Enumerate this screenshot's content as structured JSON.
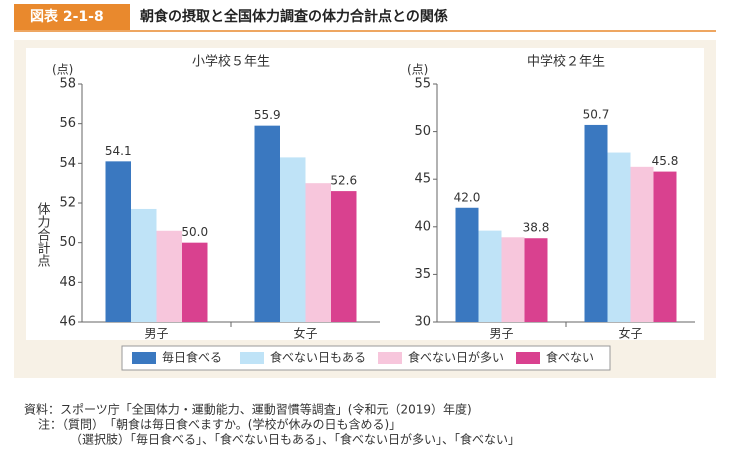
{
  "header": {
    "label": "図表 2-1-8",
    "title": "朝食の摂取と全国体力調査の体力合計点との関係"
  },
  "y_axis_label": "体力合計点",
  "chart_data": [
    {
      "type": "bar",
      "title": "小学校５年生",
      "unit": "(点)",
      "categories": [
        "男子",
        "女子"
      ],
      "series": [
        {
          "name": "毎日食べる",
          "color": "#3a78c0",
          "values": [
            54.1,
            55.9
          ],
          "value_labels": [
            "54.1",
            "55.9"
          ]
        },
        {
          "name": "食べない日もある",
          "color": "#bfe3f7",
          "values": [
            51.7,
            54.3
          ]
        },
        {
          "name": "食べない日が多い",
          "color": "#f7c6dc",
          "values": [
            50.6,
            53.0
          ]
        },
        {
          "name": "食べない",
          "color": "#d9418f",
          "values": [
            50.0,
            52.6
          ],
          "value_labels": [
            "50.0",
            "52.6"
          ]
        }
      ],
      "ylim": [
        46,
        58
      ],
      "yticks": [
        46,
        48,
        50,
        52,
        54,
        56,
        58
      ]
    },
    {
      "type": "bar",
      "title": "中学校２年生",
      "unit": "(点)",
      "categories": [
        "男子",
        "女子"
      ],
      "series": [
        {
          "name": "毎日食べる",
          "color": "#3a78c0",
          "values": [
            42.0,
            50.7
          ],
          "value_labels": [
            "42.0",
            "50.7"
          ]
        },
        {
          "name": "食べない日もある",
          "color": "#bfe3f7",
          "values": [
            39.6,
            47.8
          ]
        },
        {
          "name": "食べない日が多い",
          "color": "#f7c6dc",
          "values": [
            38.9,
            46.3
          ]
        },
        {
          "name": "食べない",
          "color": "#d9418f",
          "values": [
            38.8,
            45.8
          ],
          "value_labels": [
            "38.8",
            "45.8"
          ]
        }
      ],
      "ylim": [
        30,
        55
      ],
      "yticks": [
        30,
        35,
        40,
        45,
        50,
        55
      ]
    }
  ],
  "notes": [
    "資料：スポーツ庁「全国体力・運動能力、運動習慣等調査」(令和元（2019）年度)",
    "注：（質問）　「朝食は毎日食べますか。(学校が休みの日も含める)」",
    "（選択肢）「毎日食べる」、「食べない日もある」、「食べない日が多い」、「食べない」"
  ]
}
